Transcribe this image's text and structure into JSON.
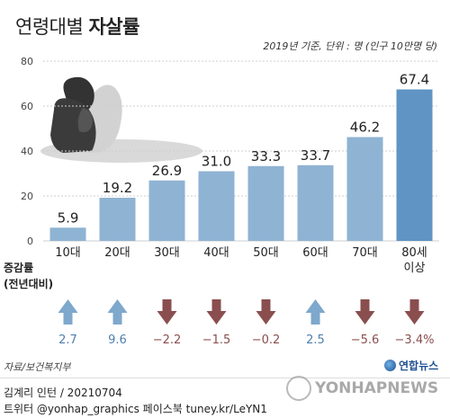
{
  "title": {
    "light": "연령대별",
    "bold": "자살률"
  },
  "subtitle": "2019년 기준, 단위 : 명 (인구 10만명 당)",
  "chart_data": {
    "type": "bar",
    "categories": [
      "10대",
      "20대",
      "30대",
      "40대",
      "50대",
      "60대",
      "70대",
      "80세\n이상"
    ],
    "values": [
      5.9,
      19.2,
      26.9,
      31.0,
      33.3,
      33.7,
      46.2,
      67.4
    ],
    "value_labels": [
      "5.9",
      "19.2",
      "26.9",
      "31.0",
      "33.3",
      "33.7",
      "46.2",
      "67.4"
    ],
    "ylim": [
      0,
      80
    ],
    "yticks": [
      0,
      20,
      40,
      60,
      80
    ],
    "grid": true,
    "bar_color": "#8fb3d3",
    "bar_highlight_color": "#5f94c4"
  },
  "change": {
    "label_line1": "증감률",
    "label_line2": "(전년대비)",
    "values": [
      2.7,
      9.6,
      -2.2,
      -1.5,
      -0.2,
      2.5,
      -5.6,
      -3.4
    ],
    "labels": [
      "2.7",
      "9.6",
      "−2.2",
      "−1.5",
      "−0.2",
      "2.5",
      "−5.6",
      "−3.4%"
    ],
    "up_color": "#7ea8cc",
    "down_color": "#8a4e4e",
    "up_text_color": "#4f7fae",
    "down_text_color": "#8a4e4e"
  },
  "source": "자료/보건복지부",
  "logo": "연합뉴스",
  "credit": "김계리 인턴 / 20210704",
  "social": "트위터 @yonhap_graphics  페이스북 tuney.kr/LeYN1",
  "watermark": "YONHAPNEWS"
}
